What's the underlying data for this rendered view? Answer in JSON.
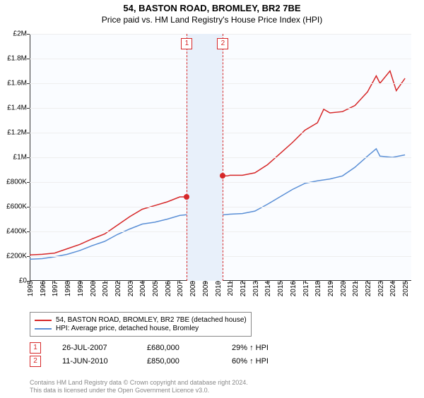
{
  "title": "54, BASTON ROAD, BROMLEY, BR2 7BE",
  "subtitle": "Price paid vs. HM Land Registry's House Price Index (HPI)",
  "chart": {
    "type": "line",
    "background_color": "#fafcff",
    "grid_color": "#eeeeee",
    "x_years": [
      1995,
      1996,
      1997,
      1998,
      1999,
      2000,
      2001,
      2002,
      2003,
      2004,
      2005,
      2006,
      2007,
      2008,
      2009,
      2010,
      2011,
      2012,
      2013,
      2014,
      2015,
      2016,
      2017,
      2018,
      2019,
      2020,
      2021,
      2022,
      2023,
      2024,
      2025
    ],
    "x_min": 1995,
    "x_max": 2025.5,
    "y_min": 0,
    "y_max": 2000000,
    "y_ticks": [
      0,
      200000,
      400000,
      600000,
      800000,
      1000000,
      1200000,
      1400000,
      1600000,
      1800000,
      2000000
    ],
    "y_tick_labels": [
      "£0",
      "£200K",
      "£400K",
      "£600K",
      "£800K",
      "£1M",
      "£1.2M",
      "£1.4M",
      "£1.6M",
      "£1.8M",
      "£2M"
    ],
    "series": [
      {
        "id": "price",
        "label": "54, BASTON ROAD, BROMLEY, BR2 7BE (detached house)",
        "color": "#d62728",
        "width": 1.5,
        "points": [
          [
            1995.0,
            210000
          ],
          [
            1996.0,
            215000
          ],
          [
            1997.0,
            225000
          ],
          [
            1998.0,
            260000
          ],
          [
            1999.0,
            295000
          ],
          [
            2000.0,
            340000
          ],
          [
            2001.0,
            380000
          ],
          [
            2002.0,
            450000
          ],
          [
            2003.0,
            520000
          ],
          [
            2004.0,
            580000
          ],
          [
            2005.0,
            610000
          ],
          [
            2006.0,
            640000
          ],
          [
            2007.0,
            680000
          ],
          [
            2007.56,
            680000
          ],
          [
            2008.0,
            695000
          ],
          [
            2008.5,
            688000
          ],
          [
            2009.0,
            655000
          ],
          [
            2009.5,
            650000
          ],
          [
            2010.0,
            660000
          ],
          [
            2010.44,
            850000
          ],
          [
            2010.8,
            850000
          ],
          [
            2011.0,
            855000
          ],
          [
            2012.0,
            855000
          ],
          [
            2013.0,
            875000
          ],
          [
            2014.0,
            940000
          ],
          [
            2015.0,
            1030000
          ],
          [
            2016.0,
            1120000
          ],
          [
            2017.0,
            1220000
          ],
          [
            2018.0,
            1280000
          ],
          [
            2018.5,
            1390000
          ],
          [
            2019.0,
            1360000
          ],
          [
            2020.0,
            1370000
          ],
          [
            2021.0,
            1420000
          ],
          [
            2022.0,
            1530000
          ],
          [
            2022.7,
            1660000
          ],
          [
            2023.0,
            1600000
          ],
          [
            2023.8,
            1700000
          ],
          [
            2024.3,
            1540000
          ],
          [
            2025.0,
            1640000
          ]
        ]
      },
      {
        "id": "hpi",
        "label": "HPI: Average price, detached house, Bromley",
        "color": "#5a8fd6",
        "width": 1.5,
        "points": [
          [
            1995.0,
            175000
          ],
          [
            1996.0,
            180000
          ],
          [
            1997.0,
            195000
          ],
          [
            1998.0,
            215000
          ],
          [
            1999.0,
            245000
          ],
          [
            2000.0,
            285000
          ],
          [
            2001.0,
            320000
          ],
          [
            2002.0,
            375000
          ],
          [
            2003.0,
            420000
          ],
          [
            2004.0,
            460000
          ],
          [
            2005.0,
            475000
          ],
          [
            2006.0,
            500000
          ],
          [
            2007.0,
            530000
          ],
          [
            2008.0,
            540000
          ],
          [
            2008.5,
            530000
          ],
          [
            2009.0,
            490000
          ],
          [
            2010.0,
            530000
          ],
          [
            2011.0,
            540000
          ],
          [
            2012.0,
            545000
          ],
          [
            2013.0,
            565000
          ],
          [
            2014.0,
            620000
          ],
          [
            2015.0,
            680000
          ],
          [
            2016.0,
            740000
          ],
          [
            2017.0,
            790000
          ],
          [
            2018.0,
            810000
          ],
          [
            2019.0,
            825000
          ],
          [
            2020.0,
            850000
          ],
          [
            2021.0,
            920000
          ],
          [
            2022.0,
            1010000
          ],
          [
            2022.7,
            1070000
          ],
          [
            2023.0,
            1010000
          ],
          [
            2024.0,
            1000000
          ],
          [
            2025.0,
            1020000
          ]
        ]
      }
    ],
    "events": [
      {
        "num": "1",
        "year": 2007.56,
        "value": 680000,
        "color": "#d62728",
        "date": "26-JUL-2007",
        "price": "£680,000",
        "pct": "29% ↑ HPI"
      },
      {
        "num": "2",
        "year": 2010.44,
        "value": 850000,
        "color": "#d62728",
        "date": "11-JUN-2010",
        "price": "£850,000",
        "pct": "60% ↑ HPI"
      }
    ],
    "event_band_color": "#e8f0fa"
  },
  "footer": {
    "line1": "Contains HM Land Registry data © Crown copyright and database right 2024.",
    "line2": "This data is licensed under the Open Government Licence v3.0."
  }
}
